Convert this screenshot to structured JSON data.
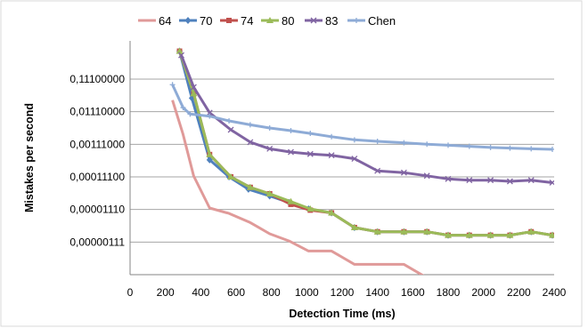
{
  "chart_data": {
    "type": "line",
    "xlabel": "Detection Time (ms)",
    "ylabel": "Mistakes per second",
    "y_scale": "log10",
    "xlim": [
      0,
      2400
    ],
    "ylim": [
      1.11e-07,
      0.111
    ],
    "grid": {
      "horizontal": true,
      "vertical": false
    },
    "legend_position": "top",
    "x_ticks": [
      0,
      200,
      400,
      600,
      800,
      1000,
      1200,
      1400,
      1600,
      1800,
      2000,
      2200,
      2400
    ],
    "x_tick_labels": [
      "0",
      "200",
      "400",
      "600",
      "800",
      "1000",
      "1200",
      "1400",
      "1600",
      "1800",
      "2000",
      "2200",
      "2400"
    ],
    "y_ticks": [
      0.111,
      0.0111,
      0.00111,
      0.000111,
      1.11e-05,
      1.11e-06
    ],
    "y_tick_labels": [
      "0,11100000",
      "0,01110000",
      "0,00111000",
      "0,00011100",
      "0,00001110",
      "0,00000111"
    ],
    "series": [
      {
        "name": "64",
        "color": "#e09a99",
        "marker": "none",
        "x": [
          240,
          300,
          360,
          450,
          560,
          680,
          790,
          900,
          1010,
          1140,
          1270,
          1400,
          1550,
          1680
        ],
        "y": [
          0.0251,
          0.00223,
          0.000118,
          1.23e-05,
          8.4e-06,
          4.4e-06,
          2e-06,
          1.2e-06,
          5.9e-07,
          5.9e-07,
          2.3e-07,
          2.3e-07,
          2.3e-07,
          8.9e-08
        ]
      },
      {
        "name": "70",
        "color": "#4f81bd",
        "marker": "diamond",
        "x": [
          280,
          350,
          450,
          560,
          670,
          790,
          900,
          1010,
          1140,
          1270,
          1400,
          1550,
          1680,
          1800,
          1920,
          2040,
          2150,
          2270,
          2390
        ],
        "y": [
          0.8,
          0.029,
          0.00037,
          0.000111,
          4.65e-05,
          2.87e-05,
          1.83e-05,
          1.16e-05,
          8.7e-06,
          3.1e-06,
          2.3e-06,
          2.3e-06,
          2.3e-06,
          1.8e-06,
          1.8e-06,
          1.8e-06,
          1.8e-06,
          2.3e-06,
          1.8e-06
        ]
      },
      {
        "name": "74",
        "color": "#c0504d",
        "marker": "square",
        "x": [
          280,
          360,
          450,
          570,
          680,
          790,
          910,
          1020,
          1140,
          1270,
          1400,
          1550,
          1680,
          1800,
          1920,
          2040,
          2150,
          2270,
          2390
        ],
        "y": [
          0.8,
          0.04,
          0.00054,
          0.000111,
          5.3e-05,
          3.37e-05,
          1.59e-05,
          1.06e-05,
          8.7e-06,
          3.1e-06,
          2.3e-06,
          2.3e-06,
          2.3e-06,
          1.8e-06,
          1.8e-06,
          1.8e-06,
          1.8e-06,
          2.3e-06,
          1.8e-06
        ]
      },
      {
        "name": "80",
        "color": "#9bbb59",
        "marker": "triangle",
        "x": [
          280,
          360,
          450,
          570,
          680,
          790,
          910,
          1020,
          1140,
          1270,
          1400,
          1550,
          1680,
          1800,
          1920,
          2040,
          2150,
          2270,
          2390
        ],
        "y": [
          0.8,
          0.04,
          0.00054,
          0.000111,
          5.3e-05,
          3.37e-05,
          1.94e-05,
          1.16e-05,
          8.7e-06,
          3.1e-06,
          2.3e-06,
          2.3e-06,
          2.3e-06,
          1.8e-06,
          1.8e-06,
          1.8e-06,
          1.8e-06,
          2.3e-06,
          1.8e-06
        ]
      },
      {
        "name": "83",
        "color": "#8064a2",
        "marker": "x",
        "x": [
          290,
          360,
          450,
          570,
          680,
          790,
          910,
          1020,
          1140,
          1270,
          1400,
          1550,
          1680,
          1800,
          1920,
          2040,
          2150,
          2270,
          2390
        ],
        "y": [
          0.6,
          0.063,
          0.0103,
          0.0031,
          0.00129,
          0.00081,
          0.00064,
          0.00056,
          0.00051,
          0.0004,
          0.00017,
          0.00015,
          0.00012,
          9.6e-05,
          8.8e-05,
          8.8e-05,
          8.1e-05,
          8.8e-05,
          7.4e-05
        ]
      },
      {
        "name": "Chen",
        "color": "#8eabd6",
        "marker": "plus",
        "x": [
          240,
          300,
          340,
          450,
          560,
          680,
          790,
          910,
          1020,
          1140,
          1270,
          1400,
          1550,
          1680,
          1800,
          1920,
          2040,
          2150,
          2270,
          2390
        ],
        "y": [
          0.075,
          0.0148,
          0.0094,
          0.0081,
          0.0058,
          0.0044,
          0.0035,
          0.0029,
          0.0024,
          0.0019,
          0.00152,
          0.00137,
          0.00124,
          0.00112,
          0.00104,
          0.00096,
          0.00089,
          0.00085,
          0.00081,
          0.00078
        ]
      }
    ]
  }
}
